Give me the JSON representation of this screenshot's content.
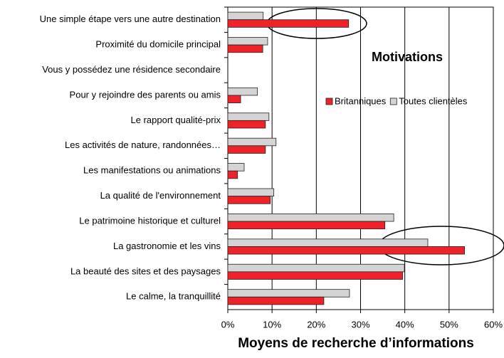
{
  "chart_data": {
    "type": "barh",
    "title": "Motivations",
    "xlabel": "Moyens de recherche d’informations",
    "categories": [
      "Une simple étape vers une autre destination",
      "Proximité du domicile principal",
      "Vous y possédez une résidence secondaire",
      "Pour y rejoindre des parents ou amis",
      "Le rapport qualité-prix",
      "Les activités de nature, randonnées…",
      "Les manifestations ou animations",
      "La qualité de l'environnement",
      "Le patrimoine historique et culturel",
      "La gastronomie et les vins",
      "La beauté des sites et des paysages",
      "Le calme, la tranquillité"
    ],
    "series": [
      {
        "name": "Britanniques",
        "color": "#ee2228",
        "values": [
          27.3,
          7.9,
          0,
          2.9,
          8.5,
          8.5,
          2.2,
          9.6,
          35.5,
          53.5,
          39.5,
          21.7
        ]
      },
      {
        "name": "Toutes clientèles",
        "color": "#d4d4d4",
        "values": [
          8,
          9,
          0,
          6.7,
          9.3,
          10.9,
          3.7,
          10.4,
          37.5,
          45.2,
          39.9,
          27.5
        ]
      }
    ],
    "xlim": [
      0,
      60
    ],
    "xticks": [
      {
        "value": 0,
        "label": "0%"
      },
      {
        "value": 10,
        "label": "10%"
      },
      {
        "value": 20,
        "label": "20%"
      },
      {
        "value": 30,
        "label": "30%"
      },
      {
        "value": 40,
        "label": "40%"
      },
      {
        "value": 50,
        "label": "50%"
      },
      {
        "value": 60,
        "label": "60%"
      }
    ],
    "grid": true
  }
}
